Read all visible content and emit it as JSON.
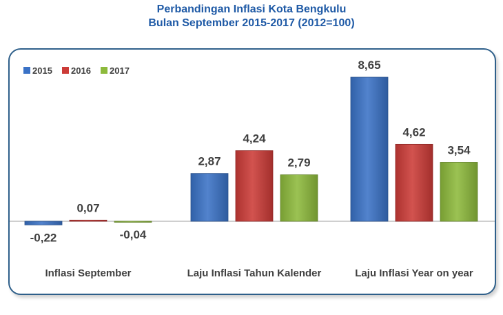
{
  "title_line1": "Perbandingan Inflasi Kota Bengkulu",
  "title_line2": "Bulan September 2015-2017 (2012=100)",
  "chart_data": {
    "type": "bar",
    "categories": [
      "Inflasi September",
      "Laju Inflasi Tahun Kalender",
      "Laju Inflasi Year on year"
    ],
    "series": [
      {
        "name": "2015",
        "values": [
          -0.22,
          2.87,
          8.65
        ],
        "labels": [
          "-0,22",
          "2,87",
          "8,65"
        ],
        "color": "#3a72c6"
      },
      {
        "name": "2016",
        "values": [
          0.07,
          4.24,
          4.62
        ],
        "labels": [
          "0,07",
          "4,24",
          "4,62"
        ],
        "color": "#cc3b37"
      },
      {
        "name": "2017",
        "values": [
          -0.04,
          2.79,
          3.54
        ],
        "labels": [
          "-0,04",
          "2,79",
          "3,54"
        ],
        "color": "#8dba3c"
      }
    ],
    "legend_position": "top-left",
    "grid": false
  }
}
